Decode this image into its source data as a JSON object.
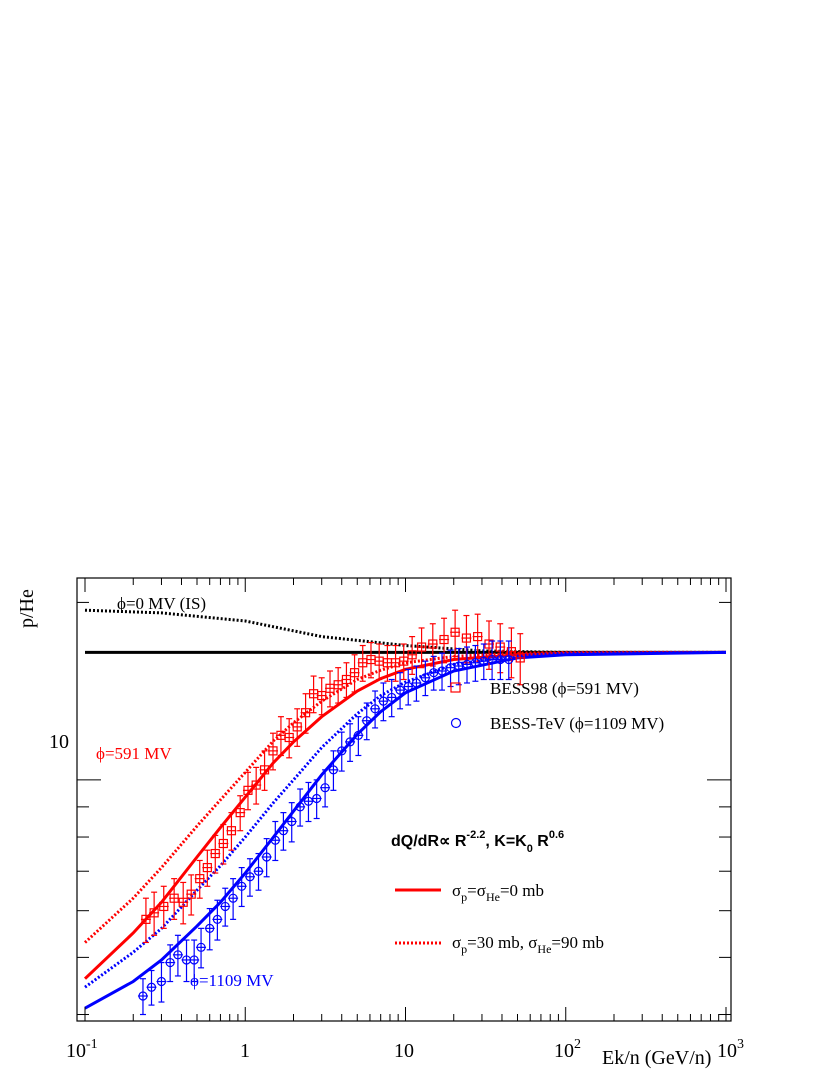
{
  "chart_data": {
    "type": "scatter",
    "title": "",
    "xlabel": "Ek/n (GeV/n)",
    "ylabel": "p/He",
    "x_scale": "log",
    "y_scale": "log",
    "xlim": [
      0.1,
      1000
    ],
    "ylim": [
      3.9,
      22
    ],
    "x_tick_labels": [
      {
        "value": 0.1,
        "base": "10",
        "exp": "-1"
      },
      {
        "value": 1,
        "base": "1",
        "exp": ""
      },
      {
        "value": 10,
        "base": "10",
        "exp": ""
      },
      {
        "value": 100,
        "base": "10",
        "exp": "2"
      },
      {
        "value": 1000,
        "base": "10",
        "exp": "3"
      }
    ],
    "y_tick_labels": [
      {
        "value": 10,
        "label": "10"
      }
    ],
    "annotations": {
      "is_label": "ϕ=0 MV (IS)",
      "phi591": "ϕ=591 MV",
      "phi1109": "ϕ=1109 MV",
      "formula": {
        "a": "dQ/dR∝ R",
        "a_sup": "-2.2",
        "b": ", K=K",
        "b_sub": "0",
        "c": " R",
        "c_sup": "0.6"
      }
    },
    "legend_top": [
      {
        "text": "BESS98 (ϕ=591 MV)",
        "marker": "square",
        "color": "#ff0000"
      },
      {
        "text": "BESS-TeV (ϕ=1109 MV)",
        "marker": "circle",
        "color": "#0000ff"
      }
    ],
    "legend_bottom": [
      {
        "style": "solid",
        "color": "#ff0000",
        "p1": "σ",
        "s1": "p",
        "p2": "=σ",
        "s2": "He",
        "p3": "=0 mb"
      },
      {
        "style": "dotted",
        "color": "#ff0000",
        "p1": "σ",
        "s1": "p",
        "p2": "=30 mb, σ",
        "s2": "He",
        "p3": "=90 mb"
      }
    ],
    "series": [
      {
        "name": "BESS98 (ϕ=591 MV)",
        "kind": "points",
        "marker": "square",
        "color": "#ff0000",
        "points": [
          [
            0.24,
            5.8,
            0.5
          ],
          [
            0.27,
            5.95,
            0.5
          ],
          [
            0.31,
            6.1,
            0.5
          ],
          [
            0.36,
            6.3,
            0.5
          ],
          [
            0.41,
            6.2,
            0.5
          ],
          [
            0.46,
            6.4,
            0.5
          ],
          [
            0.52,
            6.8,
            0.5
          ],
          [
            0.58,
            7.1,
            0.5
          ],
          [
            0.65,
            7.5,
            0.55
          ],
          [
            0.73,
            7.8,
            0.6
          ],
          [
            0.82,
            8.2,
            0.6
          ],
          [
            0.93,
            8.8,
            0.6
          ],
          [
            1.04,
            9.6,
            0.7
          ],
          [
            1.17,
            9.8,
            0.7
          ],
          [
            1.32,
            10.4,
            0.8
          ],
          [
            1.49,
            11.2,
            0.8
          ],
          [
            1.67,
            11.9,
            0.9
          ],
          [
            1.88,
            11.8,
            0.9
          ],
          [
            2.11,
            12.3,
            0.9
          ],
          [
            2.38,
            13.0,
            1.0
          ],
          [
            2.67,
            14.0,
            1.0
          ],
          [
            3.0,
            13.9,
            1.0
          ],
          [
            3.38,
            14.3,
            1.0
          ],
          [
            3.8,
            14.5,
            1.0
          ],
          [
            4.28,
            14.8,
            1.0
          ],
          [
            4.81,
            15.2,
            1.1
          ],
          [
            5.41,
            15.8,
            1.1
          ],
          [
            6.09,
            16.0,
            1.1
          ],
          [
            6.85,
            15.9,
            1.1
          ],
          [
            7.71,
            15.8,
            1.1
          ],
          [
            8.67,
            15.8,
            1.1
          ],
          [
            9.75,
            15.9,
            1.1
          ],
          [
            11.0,
            16.3,
            1.2
          ],
          [
            12.6,
            16.8,
            1.3
          ],
          [
            14.8,
            17.0,
            1.4
          ],
          [
            17.4,
            17.3,
            1.5
          ],
          [
            20.4,
            17.8,
            1.6
          ],
          [
            24.0,
            17.4,
            1.6
          ],
          [
            28.2,
            17.5,
            1.6
          ],
          [
            33.2,
            17.0,
            1.6
          ],
          [
            39.0,
            16.8,
            1.6
          ],
          [
            45.8,
            16.5,
            1.6
          ],
          [
            52.0,
            16.1,
            1.6
          ]
        ]
      },
      {
        "name": "BESS-TeV (ϕ=1109 MV)",
        "kind": "points",
        "marker": "circle",
        "color": "#0000ff",
        "points": [
          [
            0.23,
            4.3,
            0.3
          ],
          [
            0.26,
            4.45,
            0.3
          ],
          [
            0.3,
            4.55,
            0.35
          ],
          [
            0.34,
            4.9,
            0.35
          ],
          [
            0.38,
            5.05,
            0.4
          ],
          [
            0.43,
            4.95,
            0.4
          ],
          [
            0.48,
            4.95,
            0.4
          ],
          [
            0.53,
            5.2,
            0.4
          ],
          [
            0.6,
            5.6,
            0.45
          ],
          [
            0.67,
            5.8,
            0.45
          ],
          [
            0.75,
            6.1,
            0.45
          ],
          [
            0.84,
            6.3,
            0.5
          ],
          [
            0.95,
            6.6,
            0.5
          ],
          [
            1.07,
            6.85,
            0.5
          ],
          [
            1.21,
            7.0,
            0.5
          ],
          [
            1.36,
            7.4,
            0.55
          ],
          [
            1.54,
            7.9,
            0.6
          ],
          [
            1.73,
            8.2,
            0.6
          ],
          [
            1.95,
            8.5,
            0.65
          ],
          [
            2.2,
            9.0,
            0.65
          ],
          [
            2.48,
            9.2,
            0.7
          ],
          [
            2.79,
            9.3,
            0.7
          ],
          [
            3.15,
            9.7,
            0.7
          ],
          [
            3.55,
            10.4,
            0.8
          ],
          [
            4.0,
            11.2,
            0.85
          ],
          [
            4.51,
            11.6,
            0.85
          ],
          [
            5.08,
            11.9,
            0.9
          ],
          [
            5.73,
            12.6,
            0.9
          ],
          [
            6.46,
            13.2,
            0.95
          ],
          [
            7.28,
            13.6,
            1.0
          ],
          [
            8.2,
            13.8,
            1.0
          ],
          [
            9.25,
            14.2,
            1.0
          ],
          [
            10.4,
            14.4,
            1.0
          ],
          [
            11.7,
            14.6,
            1.0
          ],
          [
            13.3,
            14.9,
            1.0
          ],
          [
            15.0,
            15.2,
            1.0
          ],
          [
            16.9,
            15.3,
            1.1
          ],
          [
            19.1,
            15.5,
            1.1
          ],
          [
            21.5,
            15.6,
            1.1
          ],
          [
            24.2,
            15.7,
            1.1
          ],
          [
            27.3,
            15.8,
            1.1
          ],
          [
            30.8,
            15.9,
            1.1
          ],
          [
            34.7,
            16.0,
            1.2
          ],
          [
            39.1,
            16.0,
            1.2
          ],
          [
            44.1,
            16.0,
            1.2
          ]
        ]
      },
      {
        "kind": "line",
        "style": "solid",
        "color": "#000000",
        "width": 3,
        "points": [
          [
            0.1,
            16.45
          ],
          [
            1000,
            16.45
          ]
        ]
      },
      {
        "kind": "line",
        "style": "dotted",
        "color": "#000000",
        "width": 3,
        "points": [
          [
            0.1,
            19.4
          ],
          [
            0.3,
            19.2
          ],
          [
            1,
            18.6
          ],
          [
            3,
            17.5
          ],
          [
            10,
            16.9
          ],
          [
            30,
            16.55
          ],
          [
            100,
            16.45
          ],
          [
            1000,
            16.45
          ]
        ]
      },
      {
        "kind": "line",
        "style": "solid",
        "color": "#ff0000",
        "width": 3,
        "points": [
          [
            0.1,
            4.6
          ],
          [
            0.2,
            5.5
          ],
          [
            0.3,
            6.2
          ],
          [
            0.5,
            7.4
          ],
          [
            0.7,
            8.3
          ],
          [
            1,
            9.35
          ],
          [
            1.5,
            10.7
          ],
          [
            2,
            11.6
          ],
          [
            3,
            12.8
          ],
          [
            5,
            14.15
          ],
          [
            7,
            14.85
          ],
          [
            10,
            15.4
          ],
          [
            20,
            16.0
          ],
          [
            50,
            16.3
          ],
          [
            100,
            16.4
          ],
          [
            1000,
            16.45
          ]
        ]
      },
      {
        "kind": "line",
        "style": "dotted",
        "color": "#ff0000",
        "width": 3,
        "points": [
          [
            0.1,
            5.3
          ],
          [
            0.2,
            6.3
          ],
          [
            0.3,
            7.1
          ],
          [
            0.5,
            8.35
          ],
          [
            0.7,
            9.25
          ],
          [
            1,
            10.3
          ],
          [
            1.5,
            11.65
          ],
          [
            2,
            12.5
          ],
          [
            3,
            13.6
          ],
          [
            5,
            14.8
          ],
          [
            7,
            15.35
          ],
          [
            10,
            15.8
          ],
          [
            20,
            16.2
          ],
          [
            50,
            16.4
          ],
          [
            100,
            16.45
          ],
          [
            1000,
            16.45
          ]
        ]
      },
      {
        "kind": "line",
        "style": "solid",
        "color": "#0000ff",
        "width": 3,
        "points": [
          [
            0.1,
            4.1
          ],
          [
            0.2,
            4.55
          ],
          [
            0.3,
            4.95
          ],
          [
            0.5,
            5.65
          ],
          [
            0.7,
            6.2
          ],
          [
            1,
            6.95
          ],
          [
            1.5,
            8.0
          ],
          [
            2,
            8.85
          ],
          [
            3,
            10.2
          ],
          [
            5,
            11.95
          ],
          [
            7,
            13.05
          ],
          [
            10,
            14.05
          ],
          [
            20,
            15.3
          ],
          [
            50,
            16.1
          ],
          [
            100,
            16.3
          ],
          [
            1000,
            16.45
          ]
        ]
      },
      {
        "kind": "line",
        "style": "dotted",
        "color": "#0000ff",
        "width": 3,
        "points": [
          [
            0.1,
            4.45
          ],
          [
            0.2,
            5.1
          ],
          [
            0.3,
            5.6
          ],
          [
            0.5,
            6.5
          ],
          [
            0.7,
            7.15
          ],
          [
            1,
            8.0
          ],
          [
            1.5,
            9.15
          ],
          [
            2,
            10.0
          ],
          [
            3,
            11.35
          ],
          [
            5,
            12.95
          ],
          [
            7,
            13.9
          ],
          [
            10,
            14.65
          ],
          [
            20,
            15.7
          ],
          [
            50,
            16.25
          ],
          [
            100,
            16.4
          ],
          [
            1000,
            16.45
          ]
        ]
      }
    ]
  }
}
